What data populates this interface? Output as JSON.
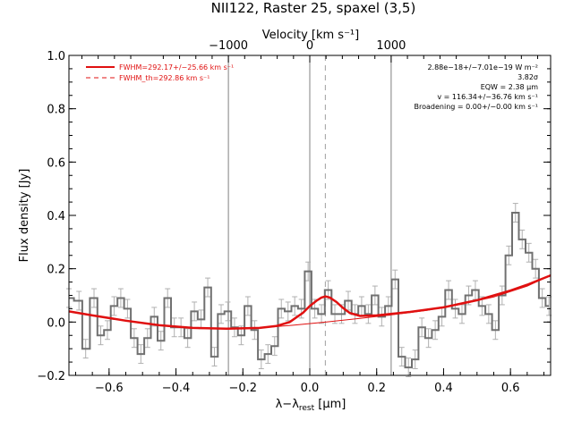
{
  "chart_data": {
    "type": "line",
    "title": "NII122, Raster 25, spaxel (3,5)",
    "xlabel": "λ−λrest [μm]",
    "xlabel_main": "λ−λ",
    "xlabel_sub": "rest",
    "xlabel_unit": " [μm]",
    "ylabel": "Flux density [Jy]",
    "top_axis_label": "Velocity [km s⁻¹]",
    "xlim": [
      -0.72,
      0.72
    ],
    "ylim": [
      -0.2,
      1.0
    ],
    "x_ticks": [
      -0.6,
      -0.4,
      -0.2,
      0.0,
      0.2,
      0.4,
      0.6
    ],
    "x_tick_labels": [
      "−0.6",
      "−0.4",
      "−0.2",
      "0.0",
      "0.2",
      "0.4",
      "0.6"
    ],
    "y_ticks": [
      -0.2,
      0.0,
      0.2,
      0.4,
      0.6,
      0.8,
      1.0
    ],
    "y_tick_labels": [
      "−0.2",
      "0.0",
      "0.2",
      "0.4",
      "0.6",
      "0.8",
      "1.0"
    ],
    "top_ticks_x": [
      -0.2433,
      0.0,
      0.2433
    ],
    "top_tick_labels": [
      "−1000",
      "0",
      "1000"
    ],
    "vertical_lines_solid": [
      -0.2433,
      0.0,
      0.2433
    ],
    "vertical_line_dashed": 0.0465,
    "legend": {
      "position": "top-left",
      "entries": [
        "FWHM=292.17+/−25.66 km s⁻¹",
        "FWHM_th=292.86 km s⁻¹"
      ]
    },
    "annotations": [
      "2.88e−18+/−7.01e−19 W m⁻²",
      "3.82σ",
      "EQW = 2.38 μm",
      "v = 116.34+/−36.76 km s⁻¹",
      "Broadening = 0.00+/−0.00 km s⁻¹"
    ],
    "series": [
      {
        "name": "",
        "style": "histogram",
        "color": "#707070",
        "x": [
          -0.72,
          -0.69,
          -0.67,
          -0.645,
          -0.625,
          -0.605,
          -0.585,
          -0.565,
          -0.545,
          -0.525,
          -0.505,
          -0.485,
          -0.465,
          -0.445,
          -0.425,
          -0.405,
          -0.385,
          -0.365,
          -0.345,
          -0.325,
          -0.305,
          -0.285,
          -0.265,
          -0.245,
          -0.225,
          -0.205,
          -0.185,
          -0.165,
          -0.145,
          -0.125,
          -0.105,
          -0.085,
          -0.065,
          -0.045,
          -0.025,
          -0.005,
          0.015,
          0.035,
          0.055,
          0.075,
          0.095,
          0.115,
          0.135,
          0.155,
          0.175,
          0.195,
          0.215,
          0.235,
          0.255,
          0.275,
          0.295,
          0.315,
          0.335,
          0.355,
          0.375,
          0.395,
          0.415,
          0.435,
          0.455,
          0.475,
          0.495,
          0.515,
          0.535,
          0.555,
          0.575,
          0.595,
          0.615,
          0.635,
          0.655,
          0.675,
          0.695,
          0.715
        ],
        "values": [
          0.09,
          0.08,
          -0.1,
          0.09,
          -0.05,
          -0.03,
          0.06,
          0.09,
          0.05,
          -0.06,
          -0.12,
          -0.06,
          0.02,
          -0.07,
          0.09,
          -0.02,
          -0.02,
          -0.06,
          0.04,
          0.01,
          0.13,
          -0.13,
          0.03,
          0.04,
          -0.02,
          -0.05,
          0.06,
          -0.03,
          -0.14,
          -0.12,
          -0.09,
          0.05,
          0.04,
          0.06,
          0.05,
          0.19,
          0.05,
          0.03,
          0.12,
          0.03,
          0.03,
          0.08,
          0.03,
          0.06,
          0.03,
          0.1,
          0.02,
          0.06,
          0.16,
          -0.13,
          -0.17,
          -0.14,
          -0.02,
          -0.06,
          -0.03,
          0.02,
          0.12,
          0.05,
          0.03,
          0.1,
          0.12,
          0.06,
          0.03,
          -0.03,
          0.1,
          0.25,
          0.41,
          0.31,
          0.26,
          0.2,
          0.09,
          0.06
        ]
      },
      {
        "name": "FWHM=292.17+/−25.66 km s⁻¹",
        "style": "line",
        "color": "#e01010",
        "x": [
          -0.72,
          -0.65,
          -0.55,
          -0.45,
          -0.35,
          -0.25,
          -0.15,
          -0.1,
          -0.06,
          -0.02,
          0.0,
          0.02,
          0.035,
          0.047,
          0.06,
          0.08,
          0.1,
          0.12,
          0.15,
          0.2,
          0.3,
          0.4,
          0.5,
          0.6,
          0.65,
          0.7,
          0.72
        ],
        "values": [
          0.04,
          0.025,
          0.005,
          -0.012,
          -0.022,
          -0.025,
          -0.022,
          -0.015,
          0.0,
          0.035,
          0.06,
          0.08,
          0.092,
          0.096,
          0.092,
          0.075,
          0.052,
          0.034,
          0.023,
          0.025,
          0.038,
          0.055,
          0.082,
          0.118,
          0.14,
          0.165,
          0.175
        ]
      },
      {
        "name": "FWHM_th=292.86 km s⁻¹",
        "style": "line",
        "color": "#e01010",
        "x": [
          -0.72,
          -0.65,
          -0.55,
          -0.45,
          -0.35,
          -0.25,
          -0.15,
          -0.05,
          0.05,
          0.15,
          0.25,
          0.35,
          0.45,
          0.55,
          0.65,
          0.72
        ],
        "values": [
          0.04,
          0.025,
          0.005,
          -0.012,
          -0.022,
          -0.025,
          -0.022,
          -0.012,
          0.0,
          0.014,
          0.028,
          0.044,
          0.066,
          0.094,
          0.135,
          0.175
        ]
      }
    ],
    "error_bars": {
      "color": "#b0b0b0",
      "half_width": 0.035
    }
  }
}
